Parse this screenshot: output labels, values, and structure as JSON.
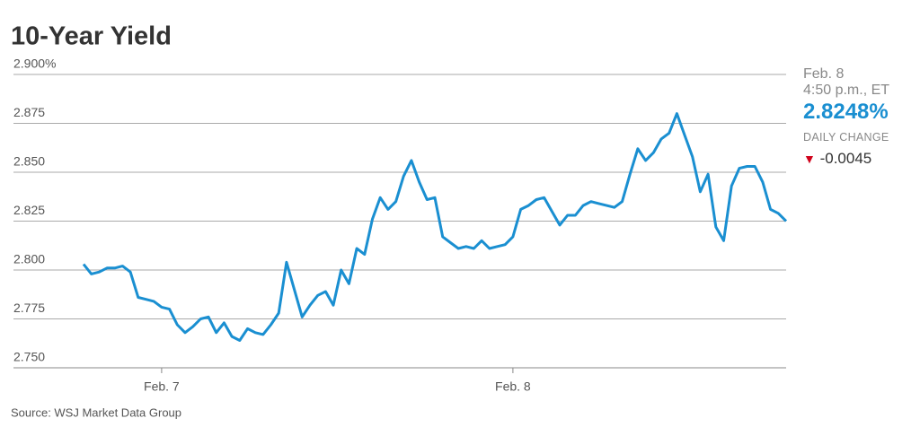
{
  "chart_data": {
    "type": "line",
    "title": "10-Year Yield",
    "source": "Source: WSJ Market Data Group",
    "categories": [
      null,
      null,
      null,
      null,
      null,
      null,
      null,
      null,
      null,
      null,
      "Feb. 7",
      null,
      null,
      null,
      null,
      null,
      null,
      null,
      null,
      null,
      null,
      null,
      null,
      null,
      null,
      null,
      null,
      null,
      null,
      null,
      null,
      null,
      null,
      null,
      null,
      null,
      null,
      null,
      null,
      null,
      null,
      null,
      null,
      null,
      null,
      null,
      null,
      null,
      null,
      null,
      null,
      null,
      null,
      null,
      null,
      "Feb. 8",
      null,
      null,
      null,
      null,
      null,
      null,
      null,
      null,
      null,
      null,
      null,
      null,
      null,
      null,
      null,
      null,
      null,
      null,
      null,
      null,
      null,
      null,
      null,
      null,
      null,
      null,
      null,
      null,
      null,
      null,
      null,
      null,
      null,
      null,
      null
    ],
    "series": [
      {
        "name": "10-Year Yield",
        "color": "#1a8fd1",
        "values": [
          2.803,
          2.798,
          2.799,
          2.801,
          2.801,
          2.802,
          2.799,
          2.786,
          2.785,
          2.784,
          2.781,
          2.78,
          2.772,
          2.768,
          2.771,
          2.775,
          2.776,
          2.768,
          2.773,
          2.766,
          2.764,
          2.77,
          2.768,
          2.767,
          2.772,
          2.778,
          2.804,
          2.79,
          2.776,
          2.782,
          2.787,
          2.789,
          2.782,
          2.8,
          2.793,
          2.811,
          2.808,
          2.826,
          2.837,
          2.831,
          2.835,
          2.848,
          2.856,
          2.845,
          2.836,
          2.837,
          2.817,
          2.814,
          2.811,
          2.812,
          2.811,
          2.815,
          2.811,
          2.812,
          2.813,
          2.817,
          2.831,
          2.833,
          2.836,
          2.837,
          2.83,
          2.823,
          2.828,
          2.828,
          2.833,
          2.835,
          2.834,
          2.833,
          2.832,
          2.835,
          2.849,
          2.862,
          2.856,
          2.86,
          2.867,
          2.87,
          2.88,
          2.869,
          2.858,
          2.84,
          2.849,
          2.822,
          2.815,
          2.843,
          2.852,
          2.853,
          2.853,
          2.845,
          2.831,
          2.829,
          2.825
        ]
      }
    ],
    "ylim": [
      2.75,
      2.9
    ],
    "yticks": [
      {
        "value": 2.75,
        "label": "2.750"
      },
      2.775,
      {
        "value": 2.8,
        "label": "2.800"
      },
      2.825,
      {
        "value": 2.85,
        "label": "2.850"
      },
      2.875,
      {
        "value": 2.9,
        "label": "2.900%"
      }
    ],
    "grid": true
  },
  "quote": {
    "date": "Feb. 8",
    "time": "4:50 p.m., ET",
    "last": "2.8248%",
    "change_label": "DAILY CHANGE",
    "change": "-0.0045"
  }
}
